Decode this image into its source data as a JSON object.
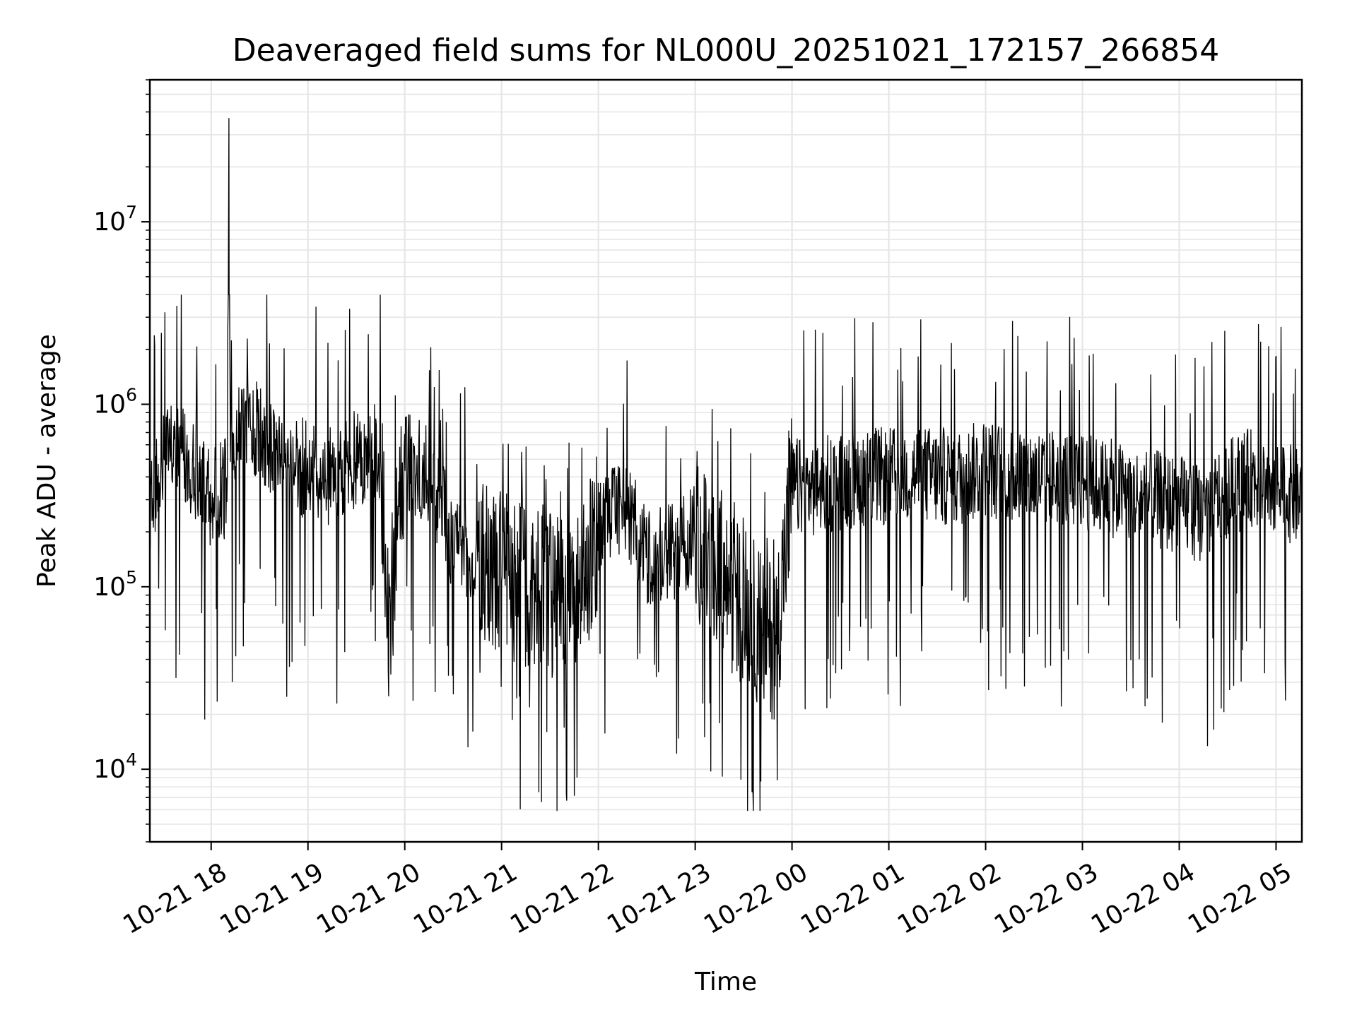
{
  "chart_data": {
    "type": "line",
    "title": "Deaveraged field sums for NL000U_20251021_172157_266854",
    "xlabel": "Time",
    "ylabel": "Peak ADU - average",
    "yscale": "log",
    "ylim": [
      4000,
      60000000
    ],
    "xlim": [
      "2025-10-21 17:22",
      "2025-10-22 05:16"
    ],
    "grid": "major and minor, light grey",
    "line_color": "#000000",
    "x_ticks": [
      "10-21 18",
      "10-21 19",
      "10-21 20",
      "10-21 21",
      "10-21 22",
      "10-21 23",
      "10-22 00",
      "10-22 01",
      "10-22 02",
      "10-22 03",
      "10-22 04",
      "10-22 05"
    ],
    "y_ticks": [
      {
        "base": "10",
        "exp": "4",
        "value": 10000
      },
      {
        "base": "10",
        "exp": "5",
        "value": 100000
      },
      {
        "base": "10",
        "exp": "6",
        "value": 1000000
      },
      {
        "base": "10",
        "exp": "7",
        "value": 10000000
      }
    ],
    "series": [
      {
        "x": [
          "2025-10-21 17:22",
          "2025-10-21 17:30",
          "2025-10-21 17:40",
          "2025-10-21 17:50",
          "2025-10-21 18:00",
          "2025-10-21 18:10",
          "2025-10-21 18:11",
          "2025-10-21 18:12",
          "2025-10-21 18:20",
          "2025-10-21 18:30",
          "2025-10-21 18:40",
          "2025-10-21 18:50",
          "2025-10-21 19:00",
          "2025-10-21 19:15",
          "2025-10-21 19:30",
          "2025-10-21 19:45",
          "2025-10-21 19:50",
          "2025-10-21 20:00",
          "2025-10-21 20:15",
          "2025-10-21 20:30",
          "2025-10-21 20:45",
          "2025-10-21 21:00",
          "2025-10-21 21:15",
          "2025-10-21 21:30",
          "2025-10-21 21:45",
          "2025-10-21 22:00",
          "2025-10-21 22:15",
          "2025-10-21 22:30",
          "2025-10-21 22:45",
          "2025-10-21 23:00",
          "2025-10-21 23:10",
          "2025-10-21 23:20",
          "2025-10-21 23:30",
          "2025-10-21 23:40",
          "2025-10-21 23:50",
          "2025-10-22 00:00",
          "2025-10-22 00:15",
          "2025-10-22 00:30",
          "2025-10-22 00:45",
          "2025-10-22 01:00",
          "2025-10-22 01:15",
          "2025-10-22 01:30",
          "2025-10-22 01:45",
          "2025-10-22 02:00",
          "2025-10-22 02:15",
          "2025-10-22 02:30",
          "2025-10-22 02:45",
          "2025-10-22 03:00",
          "2025-10-22 03:15",
          "2025-10-22 03:30",
          "2025-10-22 03:45",
          "2025-10-22 04:00",
          "2025-10-22 04:15",
          "2025-10-22 04:30",
          "2025-10-22 04:45",
          "2025-10-22 05:00",
          "2025-10-22 05:16"
        ],
        "y": [
          300000,
          500000,
          600000,
          400000,
          300000,
          350000,
          37000000,
          500000,
          800000,
          700000,
          500000,
          450000,
          450000,
          400000,
          500000,
          550000,
          60000,
          500000,
          400000,
          180000,
          150000,
          120000,
          100000,
          90000,
          80000,
          200000,
          300000,
          150000,
          150000,
          200000,
          120000,
          100000,
          80000,
          60000,
          50000,
          350000,
          350000,
          380000,
          400000,
          400000,
          420000,
          400000,
          400000,
          450000,
          420000,
          400000,
          400000,
          380000,
          350000,
          320000,
          300000,
          280000,
          250000,
          350000,
          400000,
          350000,
          300000
        ]
      }
    ]
  }
}
